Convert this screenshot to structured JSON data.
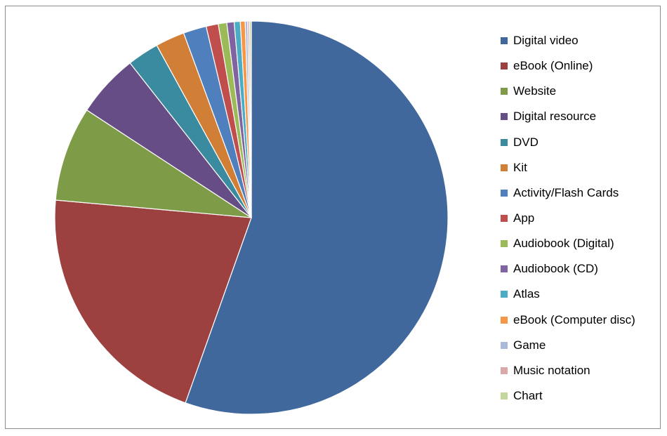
{
  "chart_data": {
    "type": "pie",
    "start_angle_deg": 0,
    "direction": "clockwise",
    "legend_position": "right",
    "series": [
      {
        "name": "Digital video",
        "value": 55.5,
        "color": "#41689C"
      },
      {
        "name": "eBook (Online)",
        "value": 21.0,
        "color": "#9C413F"
      },
      {
        "name": "Website",
        "value": 7.8,
        "color": "#7E9B48"
      },
      {
        "name": "Digital resource",
        "value": 5.2,
        "color": "#674D85"
      },
      {
        "name": "DVD",
        "value": 2.6,
        "color": "#3A8BA0"
      },
      {
        "name": "Kit",
        "value": 2.4,
        "color": "#D17E36"
      },
      {
        "name": "Activity/Flash Cards",
        "value": 1.9,
        "color": "#4F80BD"
      },
      {
        "name": "App",
        "value": 1.0,
        "color": "#BF4E4C"
      },
      {
        "name": "Audiobook (Digital)",
        "value": 0.7,
        "color": "#9BBB59"
      },
      {
        "name": "Audiobook (CD)",
        "value": 0.6,
        "color": "#8064A2"
      },
      {
        "name": "Atlas",
        "value": 0.5,
        "color": "#4BACC6"
      },
      {
        "name": "eBook (Computer disc)",
        "value": 0.4,
        "color": "#F79646"
      },
      {
        "name": "Game",
        "value": 0.2,
        "color": "#A8B9D9"
      },
      {
        "name": "Music notation",
        "value": 0.15,
        "color": "#D9A8A7"
      },
      {
        "name": "Chart",
        "value": 0.15,
        "color": "#C3D79B"
      }
    ]
  }
}
